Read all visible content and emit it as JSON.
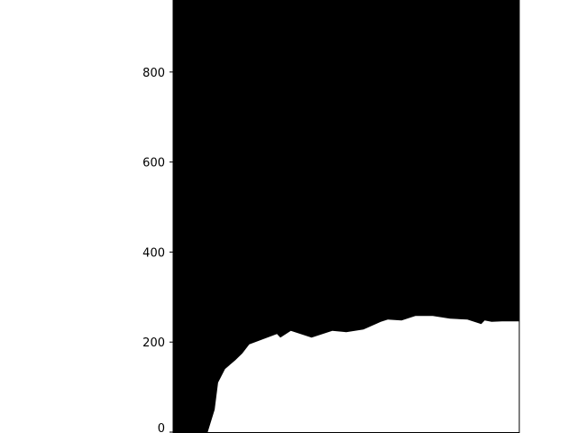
{
  "chart_data": {
    "type": "heatmap",
    "title": "",
    "xlabel": "",
    "ylabel": "",
    "ylim": [
      0,
      960
    ],
    "y_ticks": [
      0,
      200,
      400,
      600,
      800
    ],
    "y_tick_labels": [
      "0",
      "200",
      "400",
      "600",
      "800"
    ],
    "x_ticks_visible": false,
    "grid": false,
    "legend": "none",
    "colors": {
      "upper_region": "#000000",
      "lower_region": "#ffffff",
      "axis": "#000000"
    },
    "boundary": {
      "description": "white region occupies y from 0 up to the boundary; black above",
      "x_fraction": [
        0.0,
        0.1,
        0.12,
        0.13,
        0.15,
        0.18,
        0.2,
        0.22,
        0.3,
        0.31,
        0.34,
        0.4,
        0.46,
        0.5,
        0.55,
        0.6,
        0.62,
        0.66,
        0.7,
        0.75,
        0.8,
        0.85,
        0.89,
        0.9,
        0.92,
        0.95,
        1.0
      ],
      "y": [
        0,
        0,
        50,
        110,
        140,
        160,
        175,
        195,
        218,
        210,
        225,
        210,
        225,
        222,
        228,
        245,
        250,
        248,
        258,
        258,
        252,
        250,
        240,
        248,
        245,
        246,
        246
      ]
    }
  }
}
